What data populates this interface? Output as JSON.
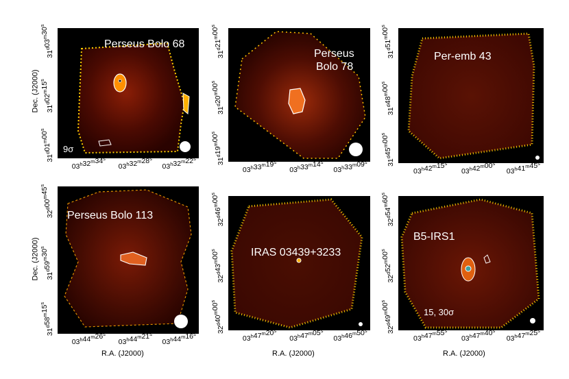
{
  "figure": {
    "ylabel": "Dec. (J2000)",
    "xlabel": "R.A. (J2000)",
    "colors": {
      "background": "#000000",
      "emission_low": "#3a0600",
      "emission_mid": "#b03010",
      "emission_high": "#ffd000",
      "contour": "#ffffff",
      "beam": "#ffffff"
    }
  },
  "panels": [
    {
      "id": "p1",
      "title_lines": [
        "Perseus Bolo 68"
      ],
      "note": "9σ",
      "xticks": [
        "03h32m34s",
        "03h32m28s",
        "03h32m22s"
      ],
      "yticks": [
        "31d01m00s",
        "31d02m15s",
        "31d03m30s"
      ]
    },
    {
      "id": "p2",
      "title_lines": [
        "Perseus",
        "Bolo 78"
      ],
      "note": "",
      "xticks": [
        "03h33m19s",
        "03h33m14s",
        "03h33m09s"
      ],
      "yticks": [
        "31d19m00s",
        "31d20m00s",
        "31d21m00s"
      ]
    },
    {
      "id": "p3",
      "title_lines": [
        "Per-emb 43"
      ],
      "note": "",
      "xticks": [
        "03h42m15s",
        "03h42m00s",
        "03h41m45s"
      ],
      "yticks": [
        "31d45m00s",
        "31d48m00s",
        "31d51m00s"
      ]
    },
    {
      "id": "p4",
      "title_lines": [
        "Perseus Bolo 113"
      ],
      "note": "",
      "xticks": [
        "03h44m26s",
        "03h44m21s",
        "03h44m16s"
      ],
      "yticks": [
        "31d58m15s",
        "31d59m30s",
        "32d00m45s"
      ]
    },
    {
      "id": "p5",
      "title_lines": [
        "IRAS 03439+3233"
      ],
      "note": "",
      "xticks": [
        "03h47m20s",
        "03h47m05s",
        "03h46m50s"
      ],
      "yticks": [
        "32d40m00s",
        "32d43m00s",
        "32d46m00s"
      ]
    },
    {
      "id": "p6",
      "title_lines": [
        "B5-IRS1"
      ],
      "note": "15, 30σ",
      "xticks": [
        "03h47m55s",
        "03h47m40s",
        "03h47m25s"
      ],
      "yticks": [
        "32d49m00s",
        "32d52m00s",
        "32d54m60s"
      ]
    }
  ]
}
